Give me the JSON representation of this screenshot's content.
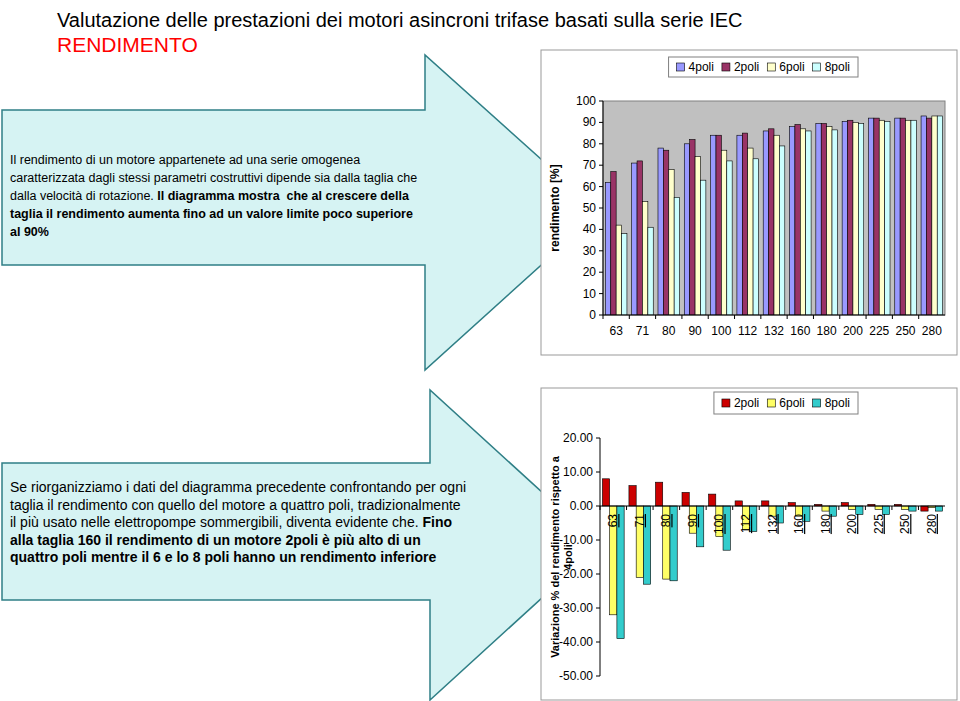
{
  "header": {
    "title": "Valutazione delle prestazioni dei motori asincroni trifase basati sulla serie IEC",
    "subtitle": "RENDIMENTO"
  },
  "texts": [
    {
      "lines": [
        [
          {
            "text": "Il rendimento di un motore appartenete ad una serie omogenea",
            "bold": false
          }
        ],
        [
          {
            "text": "caratterizzata dagli stessi parametri costruttivi dipende sia dalla taglia che",
            "bold": false
          }
        ],
        [
          {
            "text": "dalla velocità di rotazione. ",
            "bold": false
          },
          {
            "text": "Il diagramma mostra  che al crescere della",
            "bold": true
          }
        ],
        [
          {
            "text": "taglia il rendimento aumenta fino ad un valore limite poco superiore",
            "bold": true
          }
        ],
        [
          {
            "text": "al 90%",
            "bold": true
          }
        ]
      ]
    },
    {
      "lines": [
        [
          {
            "text": "Se riorganizziamo i dati del diagramma precedente confrontando per ogni",
            "bold": false
          }
        ],
        [
          {
            "text": "taglia il rendimento con quello del motore a quattro poli, tradizionalmente",
            "bold": false
          }
        ],
        [
          {
            "text": "il più usato nelle elettropompe sommergibili, diventa evidente che. ",
            "bold": false
          },
          {
            "text": "Fino",
            "bold": true
          }
        ],
        [
          {
            "text": "alla taglia 160 il rendimento di un motore 2poli è più alto di un",
            "bold": true
          }
        ],
        [
          {
            "text": "quattro poli mentre il 6 e lo 8 poli hanno un rendimento inferiore",
            "bold": true
          }
        ]
      ]
    }
  ],
  "chart_data": [
    {
      "type": "bar",
      "y_label": "rendimento [%]",
      "categories": [
        "63",
        "71",
        "80",
        "90",
        "100",
        "112",
        "132",
        "160",
        "180",
        "200",
        "225",
        "250",
        "280"
      ],
      "series": [
        {
          "name": "4poli",
          "color": "#9999ff",
          "values": [
            62,
            71,
            78,
            80,
            84,
            84,
            86,
            88,
            89.5,
            90.5,
            92,
            92,
            93
          ]
        },
        {
          "name": "2poli",
          "color": "#993366",
          "values": [
            67,
            72,
            77,
            82,
            84,
            85,
            87,
            89,
            89.5,
            91,
            92,
            92,
            92
          ]
        },
        {
          "name": "6poli",
          "color": "#ffffcc",
          "values": [
            42,
            53,
            68,
            74,
            77,
            78,
            84,
            87,
            88,
            90,
            91,
            91,
            93
          ]
        },
        {
          "name": "8poli",
          "color": "#ccffff",
          "values": [
            38,
            41,
            55,
            63,
            72,
            73,
            79,
            86,
            86.5,
            89.5,
            90.5,
            91,
            93
          ]
        }
      ],
      "ylim": [
        0,
        100
      ],
      "yticks": [
        0,
        10,
        20,
        30,
        40,
        50,
        60,
        70,
        80,
        90,
        100
      ],
      "grid": false,
      "legend": "top-right"
    },
    {
      "type": "bar",
      "y_label": "Variazione % del rendimento rispetto a 4poli",
      "categories": [
        "63",
        "71",
        "80",
        "90",
        "100",
        "112",
        "132",
        "160",
        "180",
        "200",
        "225",
        "250",
        "280"
      ],
      "series": [
        {
          "name": "2poli",
          "color": "#cc0000",
          "values": [
            8,
            6,
            7,
            4,
            3.5,
            1.5,
            1.5,
            1,
            0.5,
            1,
            0.5,
            0.5,
            -1.5
          ]
        },
        {
          "name": "6poli",
          "color": "#ffff66",
          "values": [
            -32,
            -21,
            -21.5,
            -8,
            -9,
            -7,
            -3,
            -3,
            -1.5,
            -1,
            -1,
            -1,
            -0.5
          ]
        },
        {
          "name": "8poli",
          "color": "#33cccc",
          "values": [
            -39,
            -23,
            -22,
            -12,
            -13,
            -7.5,
            -5,
            -4.5,
            -3,
            -2.5,
            -2.5,
            -1.5,
            -1.5
          ]
        }
      ],
      "ylim": [
        -50,
        20
      ],
      "yticks": [
        {
          "value": -50,
          "label": "-50.00"
        },
        {
          "value": -40,
          "label": "-40.00"
        },
        {
          "value": -30,
          "label": "-30.00"
        },
        {
          "value": -20,
          "label": "-20.00"
        },
        {
          "value": -10,
          "label": "-10.00"
        },
        {
          "value": 0,
          "label": "0.00"
        },
        {
          "value": 10,
          "label": "10.00"
        },
        {
          "value": 20,
          "label": "20.00"
        }
      ],
      "grid": false,
      "legend": "top-right"
    }
  ]
}
